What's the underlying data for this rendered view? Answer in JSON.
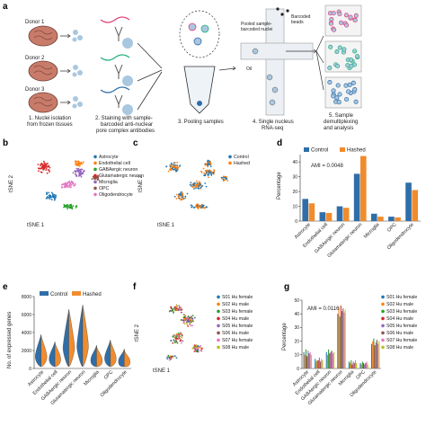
{
  "panel_labels": {
    "a": "a",
    "b": "b",
    "c": "c",
    "d": "d",
    "e": "e",
    "f": "f",
    "g": "g"
  },
  "panel_a": {
    "donors": [
      "Donor 1",
      "Donor 2",
      "Donor 3"
    ],
    "steps": [
      {
        "line1": "1. Nuclei isolation",
        "line2": "from frozen tissues"
      },
      {
        "line1": "2. Staining with sample-",
        "line2": "barcoded anti-nuclear",
        "line3": "pore complex antibodies"
      },
      {
        "line1": "3. Pooling samples"
      },
      {
        "line1": "4. Single nucleus",
        "line2": "RNA-seq"
      },
      {
        "line1": "5. Sample",
        "line2": "demultiplexing",
        "line3": "and analysis"
      }
    ],
    "pooled_text": [
      "Pooled sample-",
      "barcoded nuclei"
    ],
    "beads_text": [
      "Barcoded",
      "beads"
    ],
    "oil_text": "Oil"
  },
  "panel_b": {
    "xlabel": "tSNE 1",
    "ylabel": "tSNE 2",
    "legend": [
      {
        "label": "Astrocyte",
        "color": "#1f77b4"
      },
      {
        "label": "Endothelial cell",
        "color": "#ff7f0e"
      },
      {
        "label": "GABAergic neuron",
        "color": "#2ca02c"
      },
      {
        "label": "Glutamatergic neuron",
        "color": "#d62728"
      },
      {
        "label": "Microglia",
        "color": "#9467bd"
      },
      {
        "label": "OPC",
        "color": "#8c564b"
      },
      {
        "label": "Oligodendrocyte",
        "color": "#e377c2"
      }
    ]
  },
  "panel_c": {
    "xlabel": "tSNE 1",
    "ylabel": "tSNE 2",
    "legend": [
      {
        "label": "Control",
        "color": "#1f77b4"
      },
      {
        "label": "Hashed",
        "color": "#ff7f0e"
      }
    ]
  },
  "panel_d": {
    "chart_data": {
      "type": "bar",
      "ylabel": "Percentage",
      "annotation": "AMI = 0.0048",
      "ylim": [
        0,
        45
      ],
      "yticks": [
        0,
        10,
        20,
        30,
        40
      ],
      "categories": [
        "Astrocyte",
        "Endothelial cell",
        "GABAergic neuron",
        "Glutamatergic neuron",
        "Microglia",
        "OPC",
        "Oligodendrocyte"
      ],
      "series": [
        {
          "name": "Control",
          "color": "#2f6ea8",
          "values": [
            15,
            6,
            10,
            32,
            5,
            3,
            26
          ]
        },
        {
          "name": "Hashed",
          "color": "#f08c2e",
          "values": [
            12,
            5.5,
            9,
            44,
            3,
            2.5,
            21
          ]
        }
      ]
    }
  },
  "panel_e": {
    "chart_data": {
      "type": "violin",
      "ylabel": "No. of expressed genes",
      "ylim": [
        0,
        8000
      ],
      "yticks": [
        0,
        2000,
        4000,
        6000,
        8000
      ],
      "categories": [
        "Astrocyte",
        "Endothelial cell",
        "GABAergic neuron",
        "Glutamatergic neuron",
        "Microglia",
        "OPC",
        "Oligodendrocyte"
      ],
      "series": [
        {
          "name": "Control",
          "color": "#2f6ea8"
        },
        {
          "name": "Hashed",
          "color": "#f08c2e"
        }
      ],
      "top_values": [
        [
          3800,
          3700
        ],
        [
          3000,
          2900
        ],
        [
          6500,
          6600
        ],
        [
          7000,
          7100
        ],
        [
          2600,
          2500
        ],
        [
          3200,
          3100
        ],
        [
          2200,
          2100
        ]
      ]
    }
  },
  "panel_f": {
    "xlabel": "tSNE 1",
    "ylabel": "tSNE 2",
    "legend": [
      {
        "label": "S01 Hu female",
        "color": "#1f77b4"
      },
      {
        "label": "S02 Hu male",
        "color": "#ff7f0e"
      },
      {
        "label": "S03 Hu female",
        "color": "#2ca02c"
      },
      {
        "label": "S04 Hu male",
        "color": "#d62728"
      },
      {
        "label": "S05 Hu female",
        "color": "#9467bd"
      },
      {
        "label": "S06 Hu male",
        "color": "#8c564b"
      },
      {
        "label": "S07 Hu female",
        "color": "#e377c2"
      },
      {
        "label": "S08 Hu male",
        "color": "#bcbd22"
      }
    ]
  },
  "panel_g": {
    "chart_data": {
      "type": "bar",
      "ylabel": "Percentage",
      "annotation": "AMI = 0.0116",
      "ylim": [
        0,
        50
      ],
      "yticks": [
        0,
        10,
        20,
        30,
        40,
        50
      ],
      "categories": [
        "Astrocyte",
        "Endothelial cell",
        "GABAergic neuron",
        "Glutamatergic neuron",
        "Microglia",
        "OPC",
        "Oligodendrocyte"
      ],
      "series": [
        {
          "name": "S01 Hu female",
          "color": "#1f77b4",
          "values": [
            12,
            7,
            12,
            40,
            5,
            4,
            18
          ]
        },
        {
          "name": "S02 Hu male",
          "color": "#ff7f0e",
          "values": [
            10,
            5,
            10,
            45,
            4,
            3,
            20
          ]
        },
        {
          "name": "S03 Hu female",
          "color": "#2ca02c",
          "values": [
            14,
            6,
            14,
            38,
            6,
            5,
            22
          ]
        },
        {
          "name": "S04 Hu male",
          "color": "#d62728",
          "values": [
            9,
            6,
            11,
            46,
            3,
            4,
            17
          ]
        },
        {
          "name": "S05 Hu female",
          "color": "#9467bd",
          "values": [
            13,
            8,
            12,
            42,
            5,
            3,
            19
          ]
        },
        {
          "name": "S06 Hu male",
          "color": "#8c564b",
          "values": [
            11,
            5,
            13,
            44,
            4,
            4,
            21
          ]
        },
        {
          "name": "S07 Hu female",
          "color": "#e377c2",
          "values": [
            12,
            7,
            11,
            41,
            6,
            5,
            18
          ]
        },
        {
          "name": "S08 Hu male",
          "color": "#bcbd22",
          "values": [
            10,
            6,
            12,
            43,
            4,
            3,
            20
          ]
        }
      ]
    }
  }
}
